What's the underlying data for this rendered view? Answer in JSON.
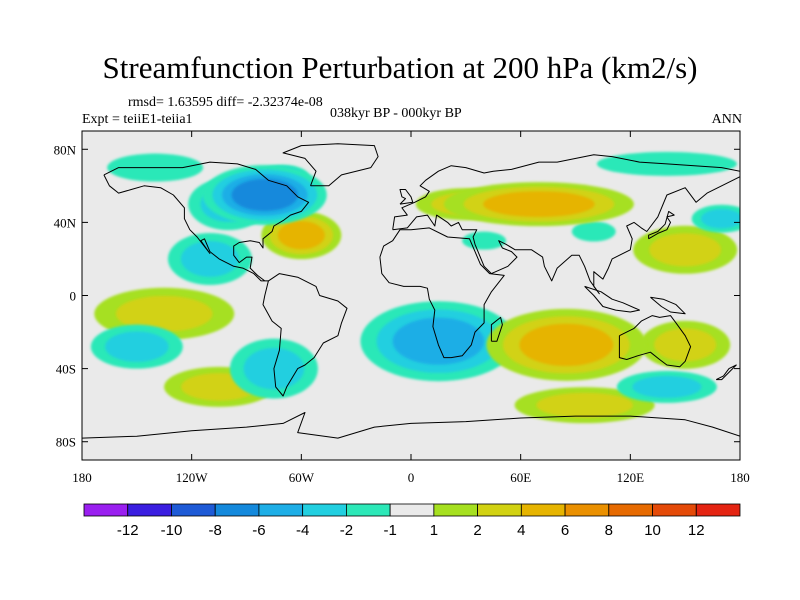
{
  "title": "Streamfunction Perturbation at 200 hPa (km2/s)",
  "stats": "rmsd= 1.63595 diff= -2.32374e-08",
  "experiment": "Expt = teiiE1-teiia1",
  "period": "038kyr BP - 000kyr BP",
  "season": "ANN",
  "axes": {
    "lon_ticks": [
      {
        "value": -180,
        "label": "180"
      },
      {
        "value": -120,
        "label": "120W"
      },
      {
        "value": -60,
        "label": "60W"
      },
      {
        "value": 0,
        "label": "0"
      },
      {
        "value": 60,
        "label": "60E"
      },
      {
        "value": 120,
        "label": "120E"
      },
      {
        "value": 180,
        "label": "180"
      }
    ],
    "lat_ticks": [
      {
        "value": 80,
        "label": "80N"
      },
      {
        "value": 40,
        "label": "40N"
      },
      {
        "value": 0,
        "label": "0"
      },
      {
        "value": -40,
        "label": "40S"
      },
      {
        "value": -80,
        "label": "80S"
      }
    ],
    "lon_range": [
      -180,
      180
    ],
    "lat_range": [
      -90,
      90
    ]
  },
  "colorbar": {
    "colors": [
      "#9a1ff0",
      "#3a1ee0",
      "#1e5ad6",
      "#1489dc",
      "#1eaee6",
      "#22cfe0",
      "#2ce8b8",
      "#eaeaea",
      "#a6e020",
      "#d2d212",
      "#e6b400",
      "#ea9000",
      "#e66a00",
      "#e44a08",
      "#e42412"
    ],
    "labels": [
      "-12",
      "-10",
      "-8",
      "-6",
      "-4",
      "-2",
      "-1",
      "1",
      "2",
      "4",
      "6",
      "8",
      "10",
      "12"
    ]
  },
  "map_colors": {
    "background": "#eaeaea",
    "coast": "#000000"
  },
  "chart_data": {
    "type": "heatmap",
    "variable": "Streamfunction Perturbation at 200 hPa (km2/s)",
    "x_range": [
      -180,
      180
    ],
    "y_range": [
      -90,
      90
    ],
    "features": [
      {
        "lon": -80,
        "lat": 55,
        "value": -7,
        "kind": "low"
      },
      {
        "lon": -70,
        "lat": 65,
        "value": -5,
        "kind": "low"
      },
      {
        "lon": -100,
        "lat": 50,
        "value": -3,
        "kind": "low"
      },
      {
        "lon": -140,
        "lat": 70,
        "value": -1.5,
        "kind": "low"
      },
      {
        "lon": -110,
        "lat": 20,
        "value": -2.5,
        "kind": "low"
      },
      {
        "lon": -60,
        "lat": 33,
        "value": 5,
        "kind": "high"
      },
      {
        "lon": 70,
        "lat": 50,
        "value": 5,
        "kind": "high"
      },
      {
        "lon": 30,
        "lat": 50,
        "value": 2.5,
        "kind": "high"
      },
      {
        "lon": 40,
        "lat": 30,
        "value": -1.5,
        "kind": "low"
      },
      {
        "lon": 100,
        "lat": 35,
        "value": -1.5,
        "kind": "low"
      },
      {
        "lon": 150,
        "lat": 25,
        "value": 2.5,
        "kind": "high"
      },
      {
        "lon": 170,
        "lat": 42,
        "value": -3,
        "kind": "low"
      },
      {
        "lon": 140,
        "lat": 72,
        "value": -1.5,
        "kind": "low"
      },
      {
        "lon": -135,
        "lat": -10,
        "value": 2.5,
        "kind": "high"
      },
      {
        "lon": -150,
        "lat": -28,
        "value": -3.5,
        "kind": "low"
      },
      {
        "lon": -75,
        "lat": -40,
        "value": -3,
        "kind": "low"
      },
      {
        "lon": -105,
        "lat": -50,
        "value": 2,
        "kind": "high"
      },
      {
        "lon": 15,
        "lat": -25,
        "value": -4,
        "kind": "low"
      },
      {
        "lon": 85,
        "lat": -27,
        "value": 5,
        "kind": "high"
      },
      {
        "lon": 150,
        "lat": -27,
        "value": 3.5,
        "kind": "high"
      },
      {
        "lon": 140,
        "lat": -50,
        "value": -3,
        "kind": "low"
      },
      {
        "lon": 95,
        "lat": -60,
        "value": 2,
        "kind": "high"
      }
    ]
  }
}
